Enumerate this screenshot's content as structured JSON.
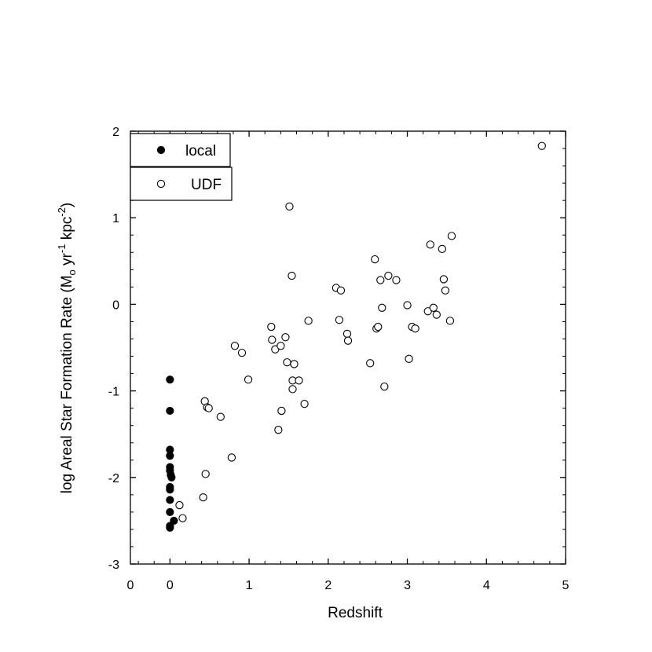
{
  "chart_data": {
    "type": "scatter",
    "title": "",
    "xlabel": "Redshift",
    "ylabel_parts": [
      "log Areal Star Formation Rate (M",
      "o",
      " yr",
      "-1",
      " kpc",
      "-2",
      ")"
    ],
    "xlim": [
      -0.5,
      5
    ],
    "ylim": [
      -3,
      2
    ],
    "x_ticks": [
      0,
      1,
      2,
      3,
      4,
      5
    ],
    "x_tick_labels": [
      "0",
      "0",
      "1",
      "2",
      "3",
      "4",
      "5"
    ],
    "x_tick_label_values": [
      -0.5,
      0,
      1,
      2,
      3,
      4,
      5
    ],
    "y_ticks": [
      -3,
      -2,
      -1,
      0,
      1,
      2
    ],
    "y_tick_labels": [
      "-3",
      "-2",
      "-1",
      "0",
      "1",
      "2"
    ],
    "grid": false,
    "legend_position": "top-left",
    "series": [
      {
        "name": "local",
        "marker": "filled-circle",
        "color": "#000000",
        "points": [
          [
            0.0,
            -0.87
          ],
          [
            0.0,
            -1.23
          ],
          [
            0.0,
            -1.68
          ],
          [
            0.0,
            -1.75
          ],
          [
            0.0,
            -1.88
          ],
          [
            0.0,
            -1.92
          ],
          [
            0.01,
            -1.97
          ],
          [
            0.02,
            -2.0
          ],
          [
            0.0,
            -2.11
          ],
          [
            0.0,
            -2.14
          ],
          [
            0.0,
            -2.26
          ],
          [
            0.0,
            -2.4
          ],
          [
            0.05,
            -2.5
          ],
          [
            0.0,
            -2.56
          ],
          [
            0.0,
            -2.58
          ]
        ]
      },
      {
        "name": "UDF",
        "marker": "open-circle",
        "color": "#000000",
        "points": [
          [
            0.12,
            -2.32
          ],
          [
            0.16,
            -2.47
          ],
          [
            0.42,
            -2.23
          ],
          [
            0.45,
            -1.96
          ],
          [
            0.44,
            -1.12
          ],
          [
            0.47,
            -1.19
          ],
          [
            0.49,
            -1.2
          ],
          [
            0.64,
            -1.3
          ],
          [
            0.78,
            -1.77
          ],
          [
            0.82,
            -0.48
          ],
          [
            0.91,
            -0.56
          ],
          [
            0.99,
            -0.87
          ],
          [
            1.28,
            -0.26
          ],
          [
            1.29,
            -0.41
          ],
          [
            1.33,
            -0.52
          ],
          [
            1.4,
            -0.48
          ],
          [
            1.37,
            -1.45
          ],
          [
            1.41,
            -1.23
          ],
          [
            1.46,
            -0.38
          ],
          [
            1.48,
            -0.67
          ],
          [
            1.51,
            1.13
          ],
          [
            1.54,
            0.33
          ],
          [
            1.55,
            -0.88
          ],
          [
            1.55,
            -0.98
          ],
          [
            1.57,
            -0.69
          ],
          [
            1.63,
            -0.88
          ],
          [
            1.7,
            -1.15
          ],
          [
            1.75,
            -0.19
          ],
          [
            2.1,
            0.19
          ],
          [
            2.14,
            -0.18
          ],
          [
            2.16,
            0.16
          ],
          [
            2.24,
            -0.34
          ],
          [
            2.25,
            -0.42
          ],
          [
            2.53,
            -0.68
          ],
          [
            2.59,
            0.52
          ],
          [
            2.61,
            -0.28
          ],
          [
            2.63,
            -0.26
          ],
          [
            2.66,
            0.28
          ],
          [
            2.68,
            -0.04
          ],
          [
            2.71,
            -0.95
          ],
          [
            2.76,
            0.33
          ],
          [
            2.86,
            0.28
          ],
          [
            3.0,
            -0.01
          ],
          [
            3.02,
            -0.63
          ],
          [
            3.06,
            -0.26
          ],
          [
            3.1,
            -0.28
          ],
          [
            3.26,
            -0.08
          ],
          [
            3.29,
            0.69
          ],
          [
            3.33,
            -0.04
          ],
          [
            3.37,
            -0.12
          ],
          [
            3.44,
            0.64
          ],
          [
            3.46,
            0.29
          ],
          [
            3.48,
            0.16
          ],
          [
            3.54,
            -0.19
          ],
          [
            3.56,
            0.79
          ],
          [
            4.7,
            1.83
          ]
        ]
      }
    ]
  }
}
